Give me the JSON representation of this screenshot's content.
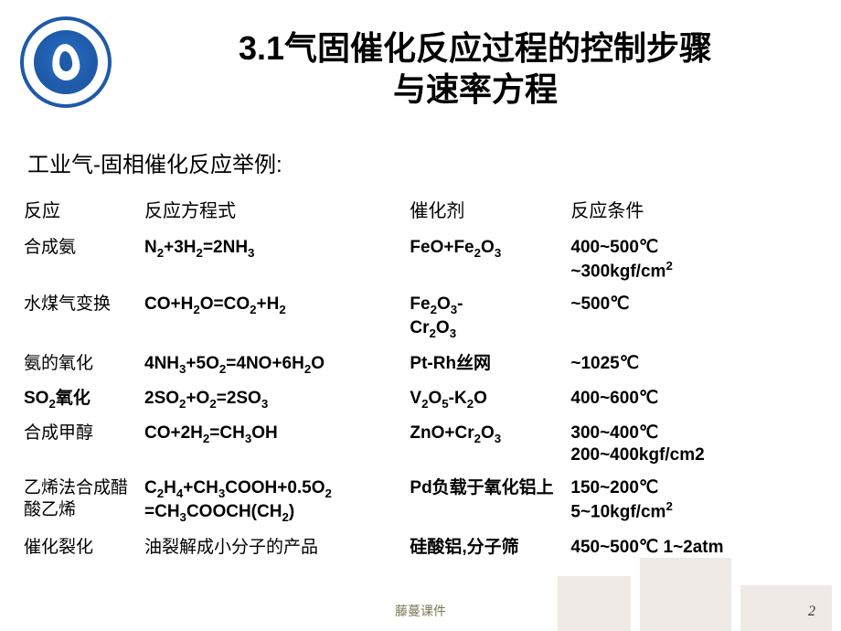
{
  "title_fontsize": 36,
  "subtitle_fontsize": 24,
  "header_fontsize": 20,
  "cell_fontsize": 19,
  "text_color": "#000000",
  "logo_border_color": "#1e5aa8",
  "logo_fill_color": "#2a6fc9",
  "background_color": "#ffffff",
  "footer_color": "#7a7a55",
  "title_line1": "3.1气固催化反应过程的控制步骤",
  "title_line2": "与速率方程",
  "subtitle": "工业气-固相催化反应举例:",
  "columns": [
    "反应",
    "反应方程式",
    "催化剂",
    "反应条件"
  ],
  "col_widths_pct": [
    15,
    33,
    20,
    32
  ],
  "rows": [
    {
      "reaction": "合成氨",
      "equation": "N<sub>2</sub>+3H<sub>2</sub>=2NH<sub>3</sub>",
      "catalyst": "FeO+Fe<sub>2</sub>O<sub>3</sub>",
      "conditions": "400~500℃<br>~300kgf/cm<sup>2</sup>"
    },
    {
      "reaction": "水煤气变换",
      "equation": "CO+H<sub>2</sub>O=CO<sub>2</sub>+H<sub>2</sub>",
      "catalyst": "Fe<sub>2</sub>O<sub>3</sub>-<br>Cr<sub>2</sub>O<sub>3</sub>",
      "conditions": "~500℃"
    },
    {
      "reaction": "氨的氧化",
      "equation": "4NH<sub>3</sub>+5O<sub>2</sub>=4NO+6H<sub>2</sub>O",
      "catalyst": "Pt-Rh丝网",
      "conditions": "~1025℃"
    },
    {
      "reaction": "SO<sub>2</sub>氧化",
      "equation": "2SO<sub>2</sub>+O<sub>2</sub>=2SO<sub>3</sub>",
      "catalyst": "V<sub>2</sub>O<sub>5</sub>-K<sub>2</sub>O",
      "conditions": "400~600℃"
    },
    {
      "reaction": "合成甲醇",
      "equation": "CO+2H<sub>2</sub>=CH<sub>3</sub>OH",
      "catalyst": "ZnO+Cr<sub>2</sub>O<sub>3</sub>",
      "conditions": "300~400℃<br>200~400kgf/cm2"
    },
    {
      "reaction": "乙烯法合成醋酸乙烯",
      "equation": "C<sub>2</sub>H<sub>4</sub>+CH<sub>3</sub>COOH+0.5O<sub>2</sub><br>=CH<sub>3</sub>COOCH(CH<sub>2</sub>)",
      "catalyst": "Pd负载于氧化铝上",
      "conditions": "150~200℃<br>5~10kgf/cm<sup>2</sup>"
    },
    {
      "reaction": "催化裂化",
      "equation": "油裂解成小分子的产品",
      "catalyst": "硅酸铝,分子筛",
      "conditions": "450~500℃ 1~2atm"
    }
  ],
  "footer_text": "藤蔓课件",
  "page_number": "2"
}
